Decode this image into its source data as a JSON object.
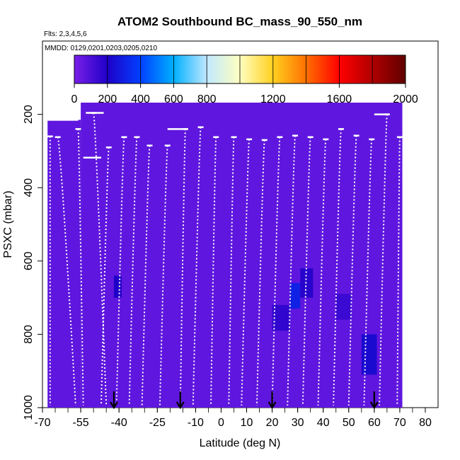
{
  "chart_data": {
    "type": "heatmap",
    "title": "ATOM2 Southbound BC_mass_90_550_nm",
    "flights_label": "Flts: 2,3,4,5,6",
    "dates_label": "MMDD: 0129,0201,0203,0205,0210",
    "xlabel": "Latitude (deg N)",
    "ylabel": "PSXC (mbar)",
    "xlim": [
      -70,
      85
    ],
    "ylim": [
      1000,
      0
    ],
    "x_ticks": [
      -70,
      -55,
      -40,
      -25,
      -10,
      0,
      10,
      20,
      30,
      40,
      50,
      60,
      70,
      80
    ],
    "y_ticks": [
      200,
      400,
      600,
      800,
      1000
    ],
    "colorbar": {
      "ticks": [
        0,
        200,
        400,
        600,
        800,
        1200,
        1600,
        2000
      ],
      "range": [
        0,
        2000
      ],
      "colors": [
        "#7a1fe8",
        "#1f00c8",
        "#0040ff",
        "#00b0ff",
        "#c0e8ff",
        "#ffffc0",
        "#ffd020",
        "#ff7000",
        "#ff0000",
        "#b00000",
        "#600000"
      ]
    },
    "background_value": 60,
    "field_blocks": [
      {
        "lat": [
          -68,
          -55
        ],
        "p": [
          215,
          1000
        ],
        "value": 60
      },
      {
        "lat": [
          -55,
          71
        ],
        "p": [
          168,
          1000
        ],
        "value": 60
      }
    ],
    "elevated_cells": [
      {
        "lat": [
          -42,
          -39
        ],
        "p": [
          640,
          700
        ],
        "value": 200
      },
      {
        "lat": [
          20,
          27
        ],
        "p": [
          720,
          790
        ],
        "value": 160
      },
      {
        "lat": [
          27,
          31
        ],
        "p": [
          660,
          730
        ],
        "value": 300
      },
      {
        "lat": [
          31,
          36
        ],
        "p": [
          620,
          700
        ],
        "value": 180
      },
      {
        "lat": [
          55,
          61
        ],
        "p": [
          800,
          910
        ],
        "value": 230
      },
      {
        "lat": [
          45,
          51
        ],
        "p": [
          690,
          760
        ],
        "value": 140
      }
    ],
    "profiles": [
      {
        "lat_top": -67,
        "lat_bottom": -67,
        "p_top": 260
      },
      {
        "lat_top": -64,
        "lat_bottom": -57,
        "p_top": 262
      },
      {
        "lat_top": -56,
        "lat_bottom": -54,
        "p_top": 240
      },
      {
        "lat_top": -50,
        "lat_bottom": -45,
        "p_top": 196
      },
      {
        "lat_top": -44,
        "lat_bottom": -47,
        "p_top": 290
      },
      {
        "lat_top": -38,
        "lat_bottom": -41,
        "p_top": 262
      },
      {
        "lat_top": -33,
        "lat_bottom": -36,
        "p_top": 262
      },
      {
        "lat_top": -28,
        "lat_bottom": -31,
        "p_top": 285
      },
      {
        "lat_top": -21,
        "lat_bottom": -24,
        "p_top": 285
      },
      {
        "lat_top": -14,
        "lat_bottom": -16,
        "p_top": 240
      },
      {
        "lat_top": -8,
        "lat_bottom": -11,
        "p_top": 235
      },
      {
        "lat_top": -2,
        "lat_bottom": -4,
        "p_top": 262
      },
      {
        "lat_top": 5,
        "lat_bottom": 3,
        "p_top": 262
      },
      {
        "lat_top": 11,
        "lat_bottom": 8,
        "p_top": 268
      },
      {
        "lat_top": 17,
        "lat_bottom": 14,
        "p_top": 270
      },
      {
        "lat_top": 23,
        "lat_bottom": 20,
        "p_top": 262
      },
      {
        "lat_top": 29,
        "lat_bottom": 26,
        "p_top": 258
      },
      {
        "lat_top": 35,
        "lat_bottom": 32,
        "p_top": 262
      },
      {
        "lat_top": 41,
        "lat_bottom": 38,
        "p_top": 268
      },
      {
        "lat_top": 47,
        "lat_bottom": 44,
        "p_top": 240
      },
      {
        "lat_top": 53,
        "lat_bottom": 50,
        "p_top": 258
      },
      {
        "lat_top": 59,
        "lat_bottom": 56,
        "p_top": 268
      },
      {
        "lat_top": 65,
        "lat_bottom": 62,
        "p_top": 200
      },
      {
        "lat_top": 70,
        "lat_bottom": 69,
        "p_top": 262
      }
    ],
    "level_legs": [
      {
        "lat": [
          -69,
          -56
        ],
        "p": 215
      },
      {
        "lat": [
          -54,
          -47
        ],
        "p": 318
      },
      {
        "lat": [
          -53,
          -46
        ],
        "p": 196
      },
      {
        "lat": [
          -21,
          -13
        ],
        "p": 240
      },
      {
        "lat": [
          60,
          66
        ],
        "p": 200
      }
    ],
    "arrows_lat": [
      -42,
      -16,
      20,
      60
    ]
  }
}
